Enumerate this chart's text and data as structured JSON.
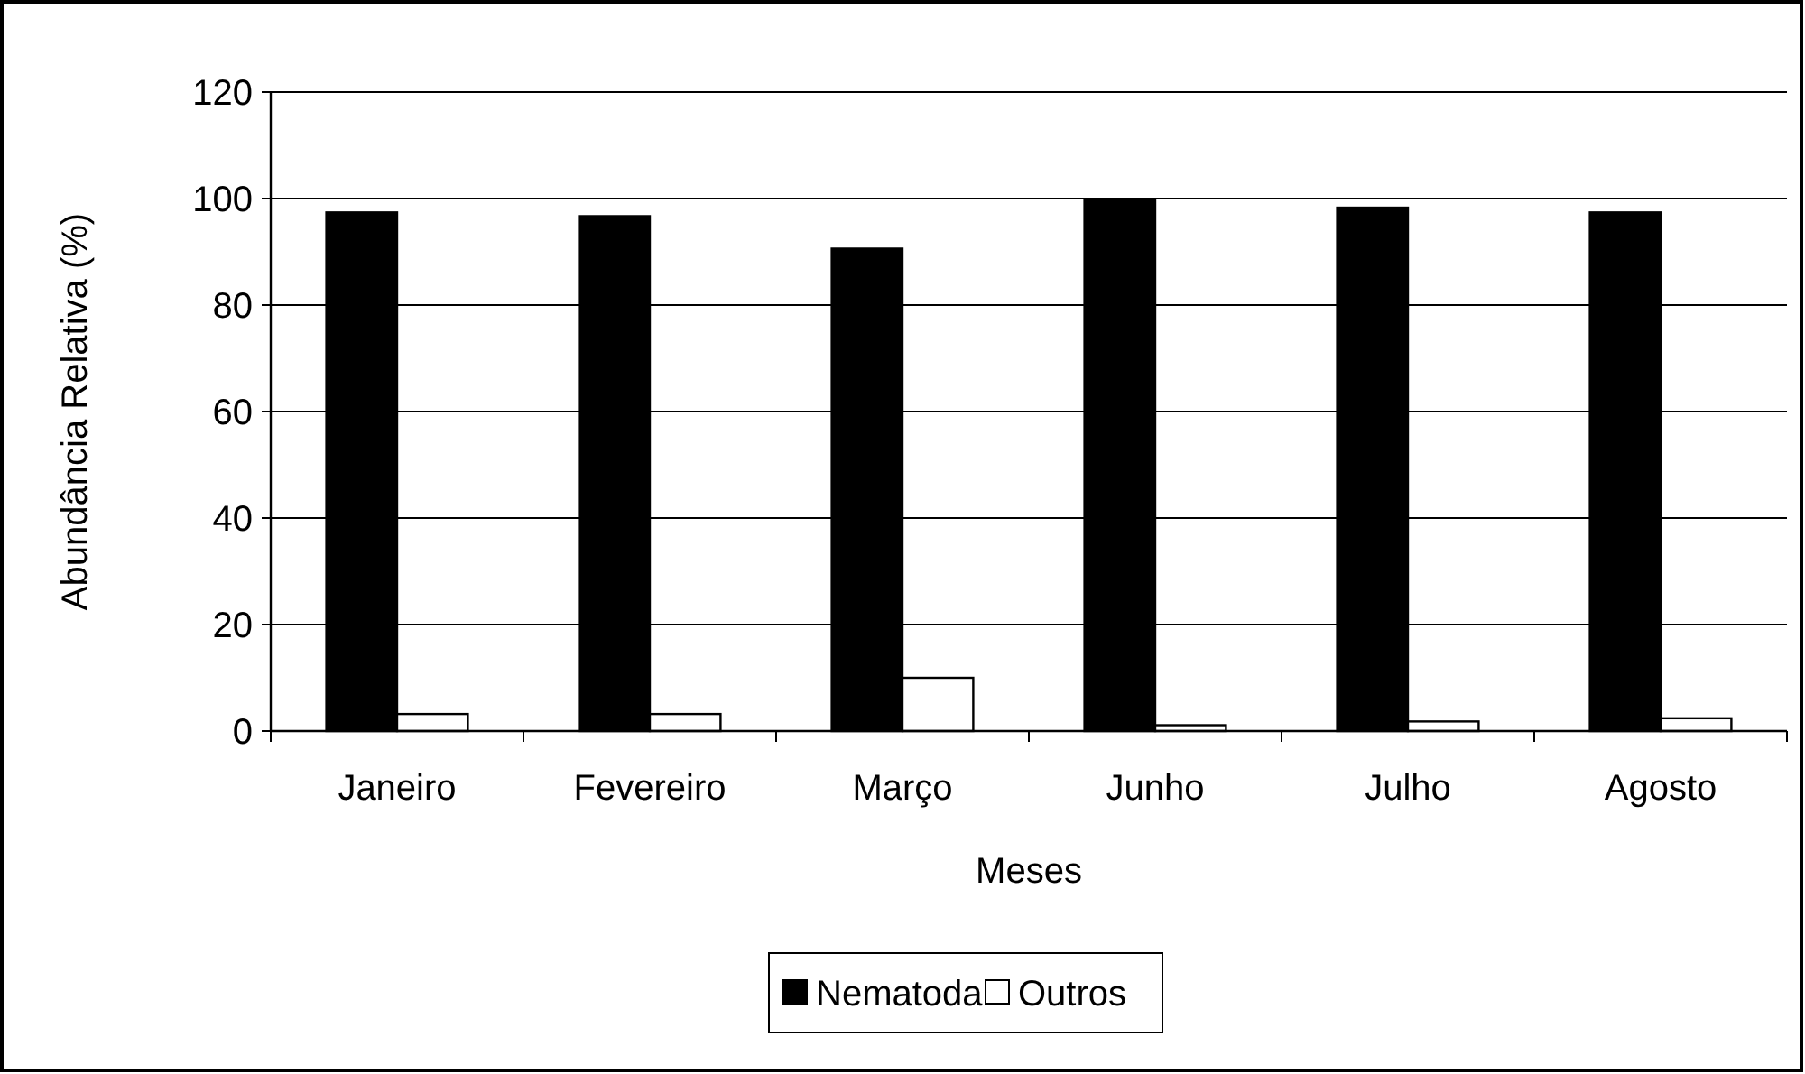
{
  "chart_data": {
    "type": "bar",
    "xlabel": "Meses",
    "ylabel": "Abundância Relativa (%)",
    "categories": [
      "Janeiro",
      "Fevereiro",
      "Março",
      "Junho",
      "Julho",
      "Agosto"
    ],
    "series": [
      {
        "name": "Nematoda",
        "color": "#000000",
        "values": [
          97.4,
          96.7,
          90.6,
          99.7,
          98.3,
          97.4
        ]
      },
      {
        "name": "Outros",
        "color": "#ffffff",
        "values": [
          3.2,
          3.2,
          10.0,
          1.1,
          1.8,
          2.4
        ]
      }
    ],
    "ylim": [
      0,
      120
    ],
    "yticks": [
      0,
      20,
      40,
      60,
      80,
      100,
      120
    ],
    "grid": "y",
    "legend": "bottom"
  }
}
